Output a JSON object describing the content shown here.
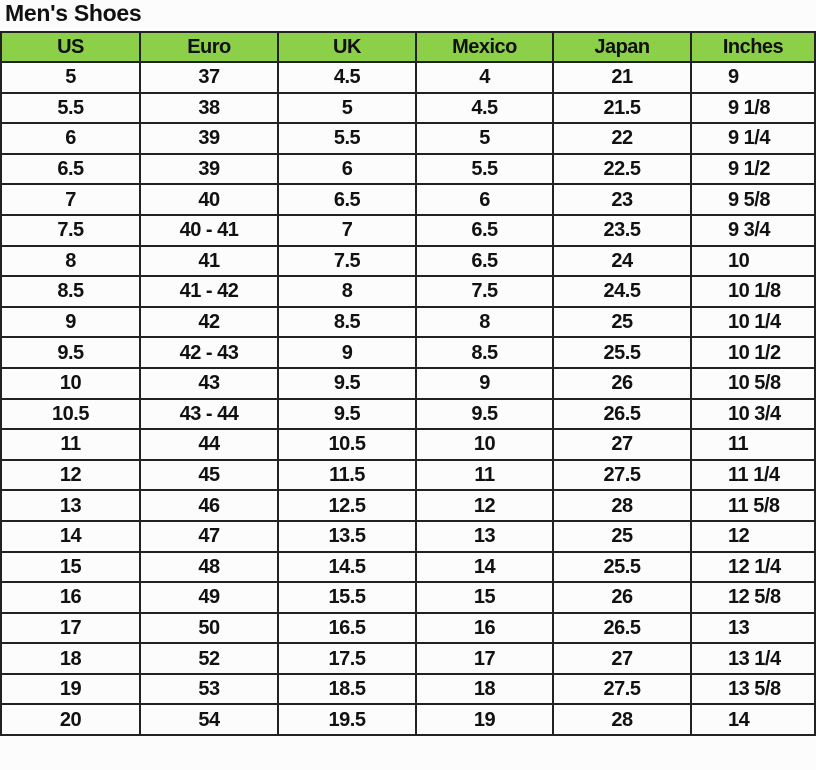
{
  "title": "Men's Shoes",
  "header_color": "#8ccf48",
  "columns": [
    "US",
    "Euro",
    "UK",
    "Mexico",
    "Japan",
    "Inches"
  ],
  "rows": [
    [
      "5",
      "37",
      "4.5",
      "4",
      "21",
      "9"
    ],
    [
      "5.5",
      "38",
      "5",
      "4.5",
      "21.5",
      "9 1/8"
    ],
    [
      "6",
      "39",
      "5.5",
      "5",
      "22",
      "9 1/4"
    ],
    [
      "6.5",
      "39",
      "6",
      "5.5",
      "22.5",
      "9 1/2"
    ],
    [
      "7",
      "40",
      "6.5",
      "6",
      "23",
      "9 5/8"
    ],
    [
      "7.5",
      "40 - 41",
      "7",
      "6.5",
      "23.5",
      "9 3/4"
    ],
    [
      "8",
      "41",
      "7.5",
      "6.5",
      "24",
      "10"
    ],
    [
      "8.5",
      "41 - 42",
      "8",
      "7.5",
      "24.5",
      "10 1/8"
    ],
    [
      "9",
      "42",
      "8.5",
      "8",
      "25",
      "10 1/4"
    ],
    [
      "9.5",
      "42 - 43",
      "9",
      "8.5",
      "25.5",
      "10 1/2"
    ],
    [
      "10",
      "43",
      "9.5",
      "9",
      "26",
      "10 5/8"
    ],
    [
      "10.5",
      "43 - 44",
      "9.5",
      "9.5",
      "26.5",
      "10 3/4"
    ],
    [
      "11",
      "44",
      "10.5",
      "10",
      "27",
      "11"
    ],
    [
      "12",
      "45",
      "11.5",
      "11",
      "27.5",
      "11 1/4"
    ],
    [
      "13",
      "46",
      "12.5",
      "12",
      "28",
      "11 5/8"
    ],
    [
      "14",
      "47",
      "13.5",
      "13",
      "25",
      "12"
    ],
    [
      "15",
      "48",
      "14.5",
      "14",
      "25.5",
      "12 1/4"
    ],
    [
      "16",
      "49",
      "15.5",
      "15",
      "26",
      "12 5/8"
    ],
    [
      "17",
      "50",
      "16.5",
      "16",
      "26.5",
      "13"
    ],
    [
      "18",
      "52",
      "17.5",
      "17",
      "27",
      "13 1/4"
    ],
    [
      "19",
      "53",
      "18.5",
      "18",
      "27.5",
      "13 5/8"
    ],
    [
      "20",
      "54",
      "19.5",
      "19",
      "28",
      "14"
    ]
  ]
}
